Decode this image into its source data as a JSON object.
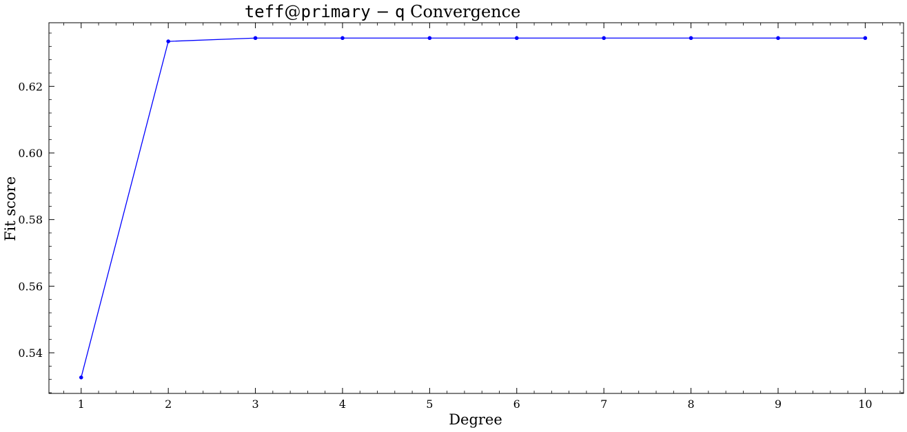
{
  "chart_data": {
    "type": "line",
    "title": {
      "part1": "teff",
      "part2": "@",
      "part3": "primary",
      "part4": " − ",
      "part5": "q",
      "part6": " Convergence"
    },
    "xlabel": "Degree",
    "ylabel": "Fit score",
    "x": [
      1,
      2,
      3,
      4,
      5,
      6,
      7,
      8,
      9,
      10
    ],
    "xticks": [
      "1",
      "2",
      "3",
      "4",
      "5",
      "6",
      "7",
      "8",
      "9",
      "10"
    ],
    "yticks": [
      {
        "value": 0.54,
        "label": "0.54"
      },
      {
        "value": 0.56,
        "label": "0.56"
      },
      {
        "value": 0.58,
        "label": "0.58"
      },
      {
        "value": 0.6,
        "label": "0.60"
      },
      {
        "value": 0.62,
        "label": "0.62"
      }
    ],
    "xlim": [
      0.63,
      10.44
    ],
    "ylim": [
      0.5278,
      0.6391
    ],
    "series": [
      {
        "color": "#0000ff",
        "marker": "circle",
        "values": [
          0.5326,
          0.6335,
          0.6345,
          0.6345,
          0.6345,
          0.6345,
          0.6345,
          0.6345,
          0.6345,
          0.6345
        ]
      }
    ],
    "grid": false
  }
}
